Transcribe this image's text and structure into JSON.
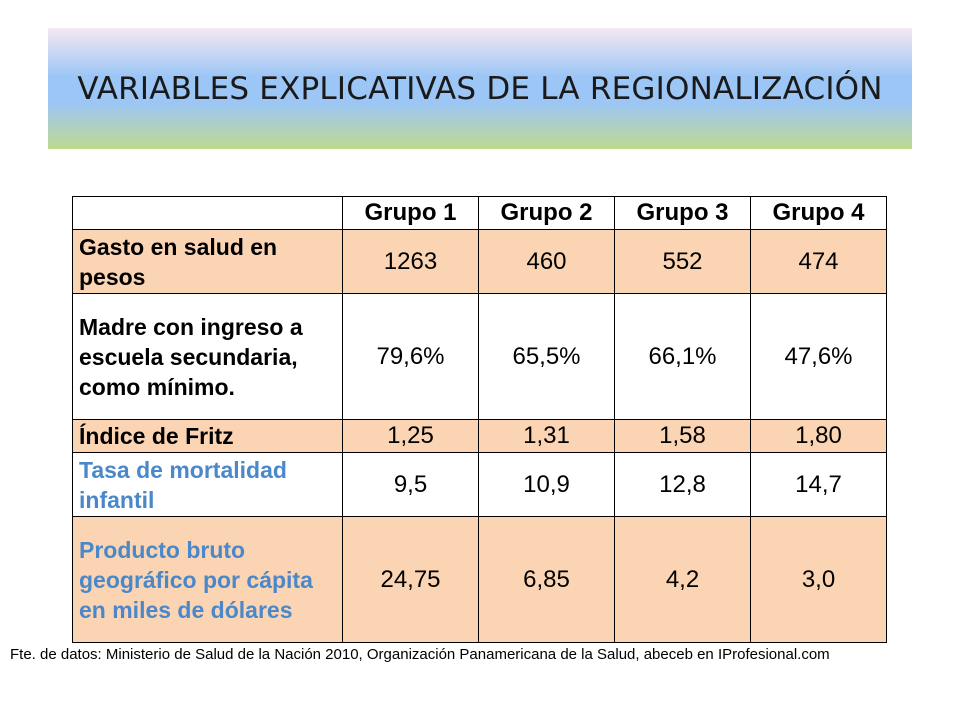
{
  "slide": {
    "title": "VARIABLES EXPLICATIVAS DE LA REGIONALIZACIÓN",
    "source": "Fte. de datos: Ministerio de Salud de la Nación 2010, Organización Panamericana de la Salud, abeceb en IProfesional.com"
  },
  "table": {
    "corner": "",
    "headers": [
      "Grupo 1",
      "Grupo 2",
      "Grupo 3",
      "Grupo 4"
    ],
    "rows": [
      {
        "label": "Gasto en salud en pesos",
        "values": [
          "1263",
          "460",
          "552",
          "474"
        ]
      },
      {
        "label": "Madre con ingreso a escuela secundaria, como mínimo.",
        "values": [
          "79,6%",
          "65,5%",
          "66,1%",
          "47,6%"
        ]
      },
      {
        "label": "Índice de Fritz",
        "values": [
          "1,25",
          "1,31",
          "1,58",
          "1,80"
        ]
      },
      {
        "label": "Tasa de mortalidad infantil",
        "values": [
          "9,5",
          "10,9",
          "12,8",
          "14,7"
        ]
      },
      {
        "label": "Producto bruto geográfico por cápita en miles de dólares",
        "values": [
          "24,75",
          "6,85",
          "4,2",
          "3,0"
        ]
      }
    ]
  },
  "colors": {
    "row_highlight": "#fbd4b4",
    "label_blue": "#4a88c9"
  }
}
